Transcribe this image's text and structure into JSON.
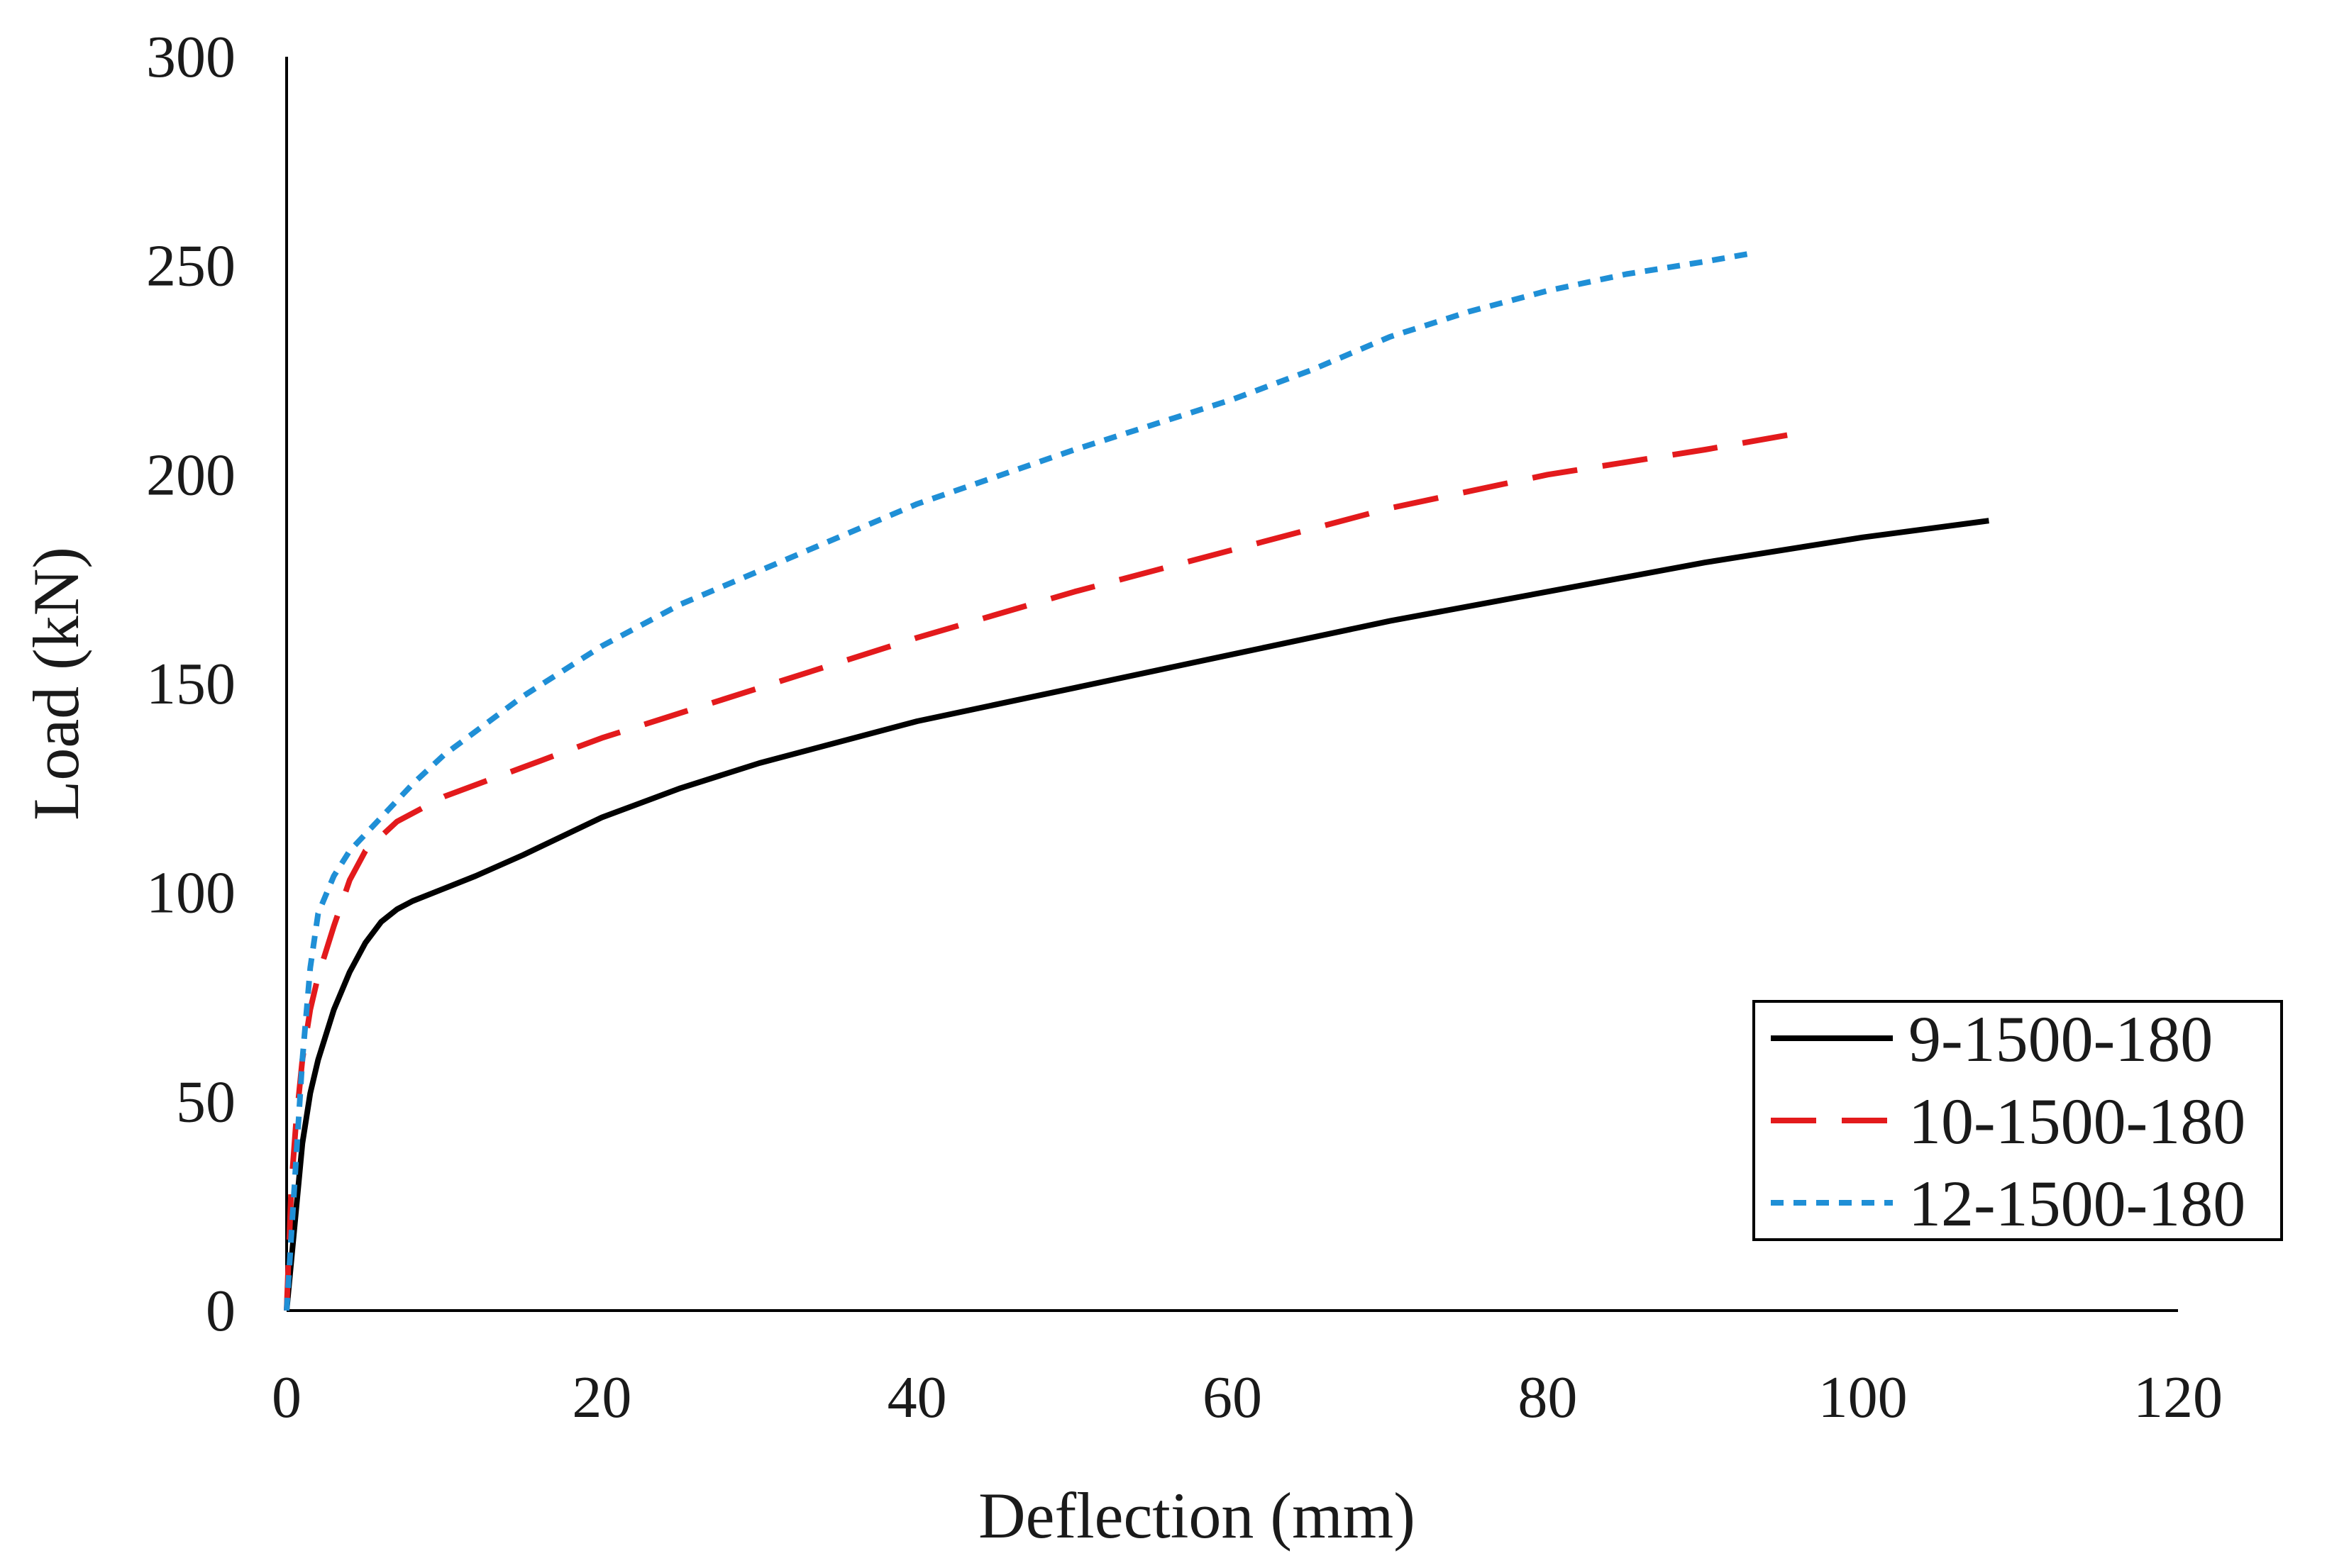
{
  "chart_data": {
    "type": "line",
    "title": "",
    "xlabel": "Deflection (mm)",
    "ylabel": "Load (kN)",
    "xlim": [
      0,
      120
    ],
    "ylim": [
      0,
      300
    ],
    "xticks": [
      0,
      20,
      40,
      60,
      80,
      100,
      120
    ],
    "yticks": [
      0,
      50,
      100,
      150,
      200,
      250,
      300
    ],
    "grid": false,
    "legend_position": "bottom-right",
    "series": [
      {
        "name": "9-1500-180",
        "color": "#000000",
        "style": "solid",
        "x": [
          0,
          0.5,
          1,
          1.5,
          2,
          3,
          4,
          5,
          6,
          7,
          8,
          10,
          12,
          15,
          20,
          25,
          30,
          40,
          50,
          60,
          70,
          80,
          90,
          100,
          108
        ],
        "y": [
          0,
          20,
          40,
          52,
          60,
          72,
          81,
          88,
          93,
          96,
          98,
          101,
          104,
          109,
          118,
          125,
          131,
          141,
          149,
          157,
          165,
          172,
          179,
          185,
          189
        ]
      },
      {
        "name": "10-1500-180",
        "color": "#e31a1c",
        "style": "dashed",
        "x": [
          0,
          0.3,
          0.6,
          1,
          1.5,
          2,
          3,
          4,
          5,
          7,
          10,
          15,
          20,
          30,
          40,
          50,
          60,
          70,
          80,
          90,
          96
        ],
        "y": [
          0,
          30,
          45,
          60,
          72,
          80,
          92,
          103,
          110,
          117,
          123,
          130,
          137,
          149,
          161,
          172,
          182,
          192,
          200,
          206,
          210
        ]
      },
      {
        "name": "12-1500-180",
        "color": "#1f8fd6",
        "style": "dotted",
        "x": [
          0,
          0.5,
          1,
          1.5,
          2,
          3,
          4,
          6,
          8,
          10,
          15,
          20,
          25,
          30,
          40,
          50,
          60,
          65,
          70,
          75,
          80,
          85,
          90,
          93
        ],
        "y": [
          0,
          30,
          60,
          82,
          95,
          104,
          110,
          118,
          126,
          133,
          147,
          159,
          169,
          177,
          193,
          206,
          218,
          225,
          233,
          239,
          244,
          248,
          251,
          253
        ]
      }
    ]
  }
}
